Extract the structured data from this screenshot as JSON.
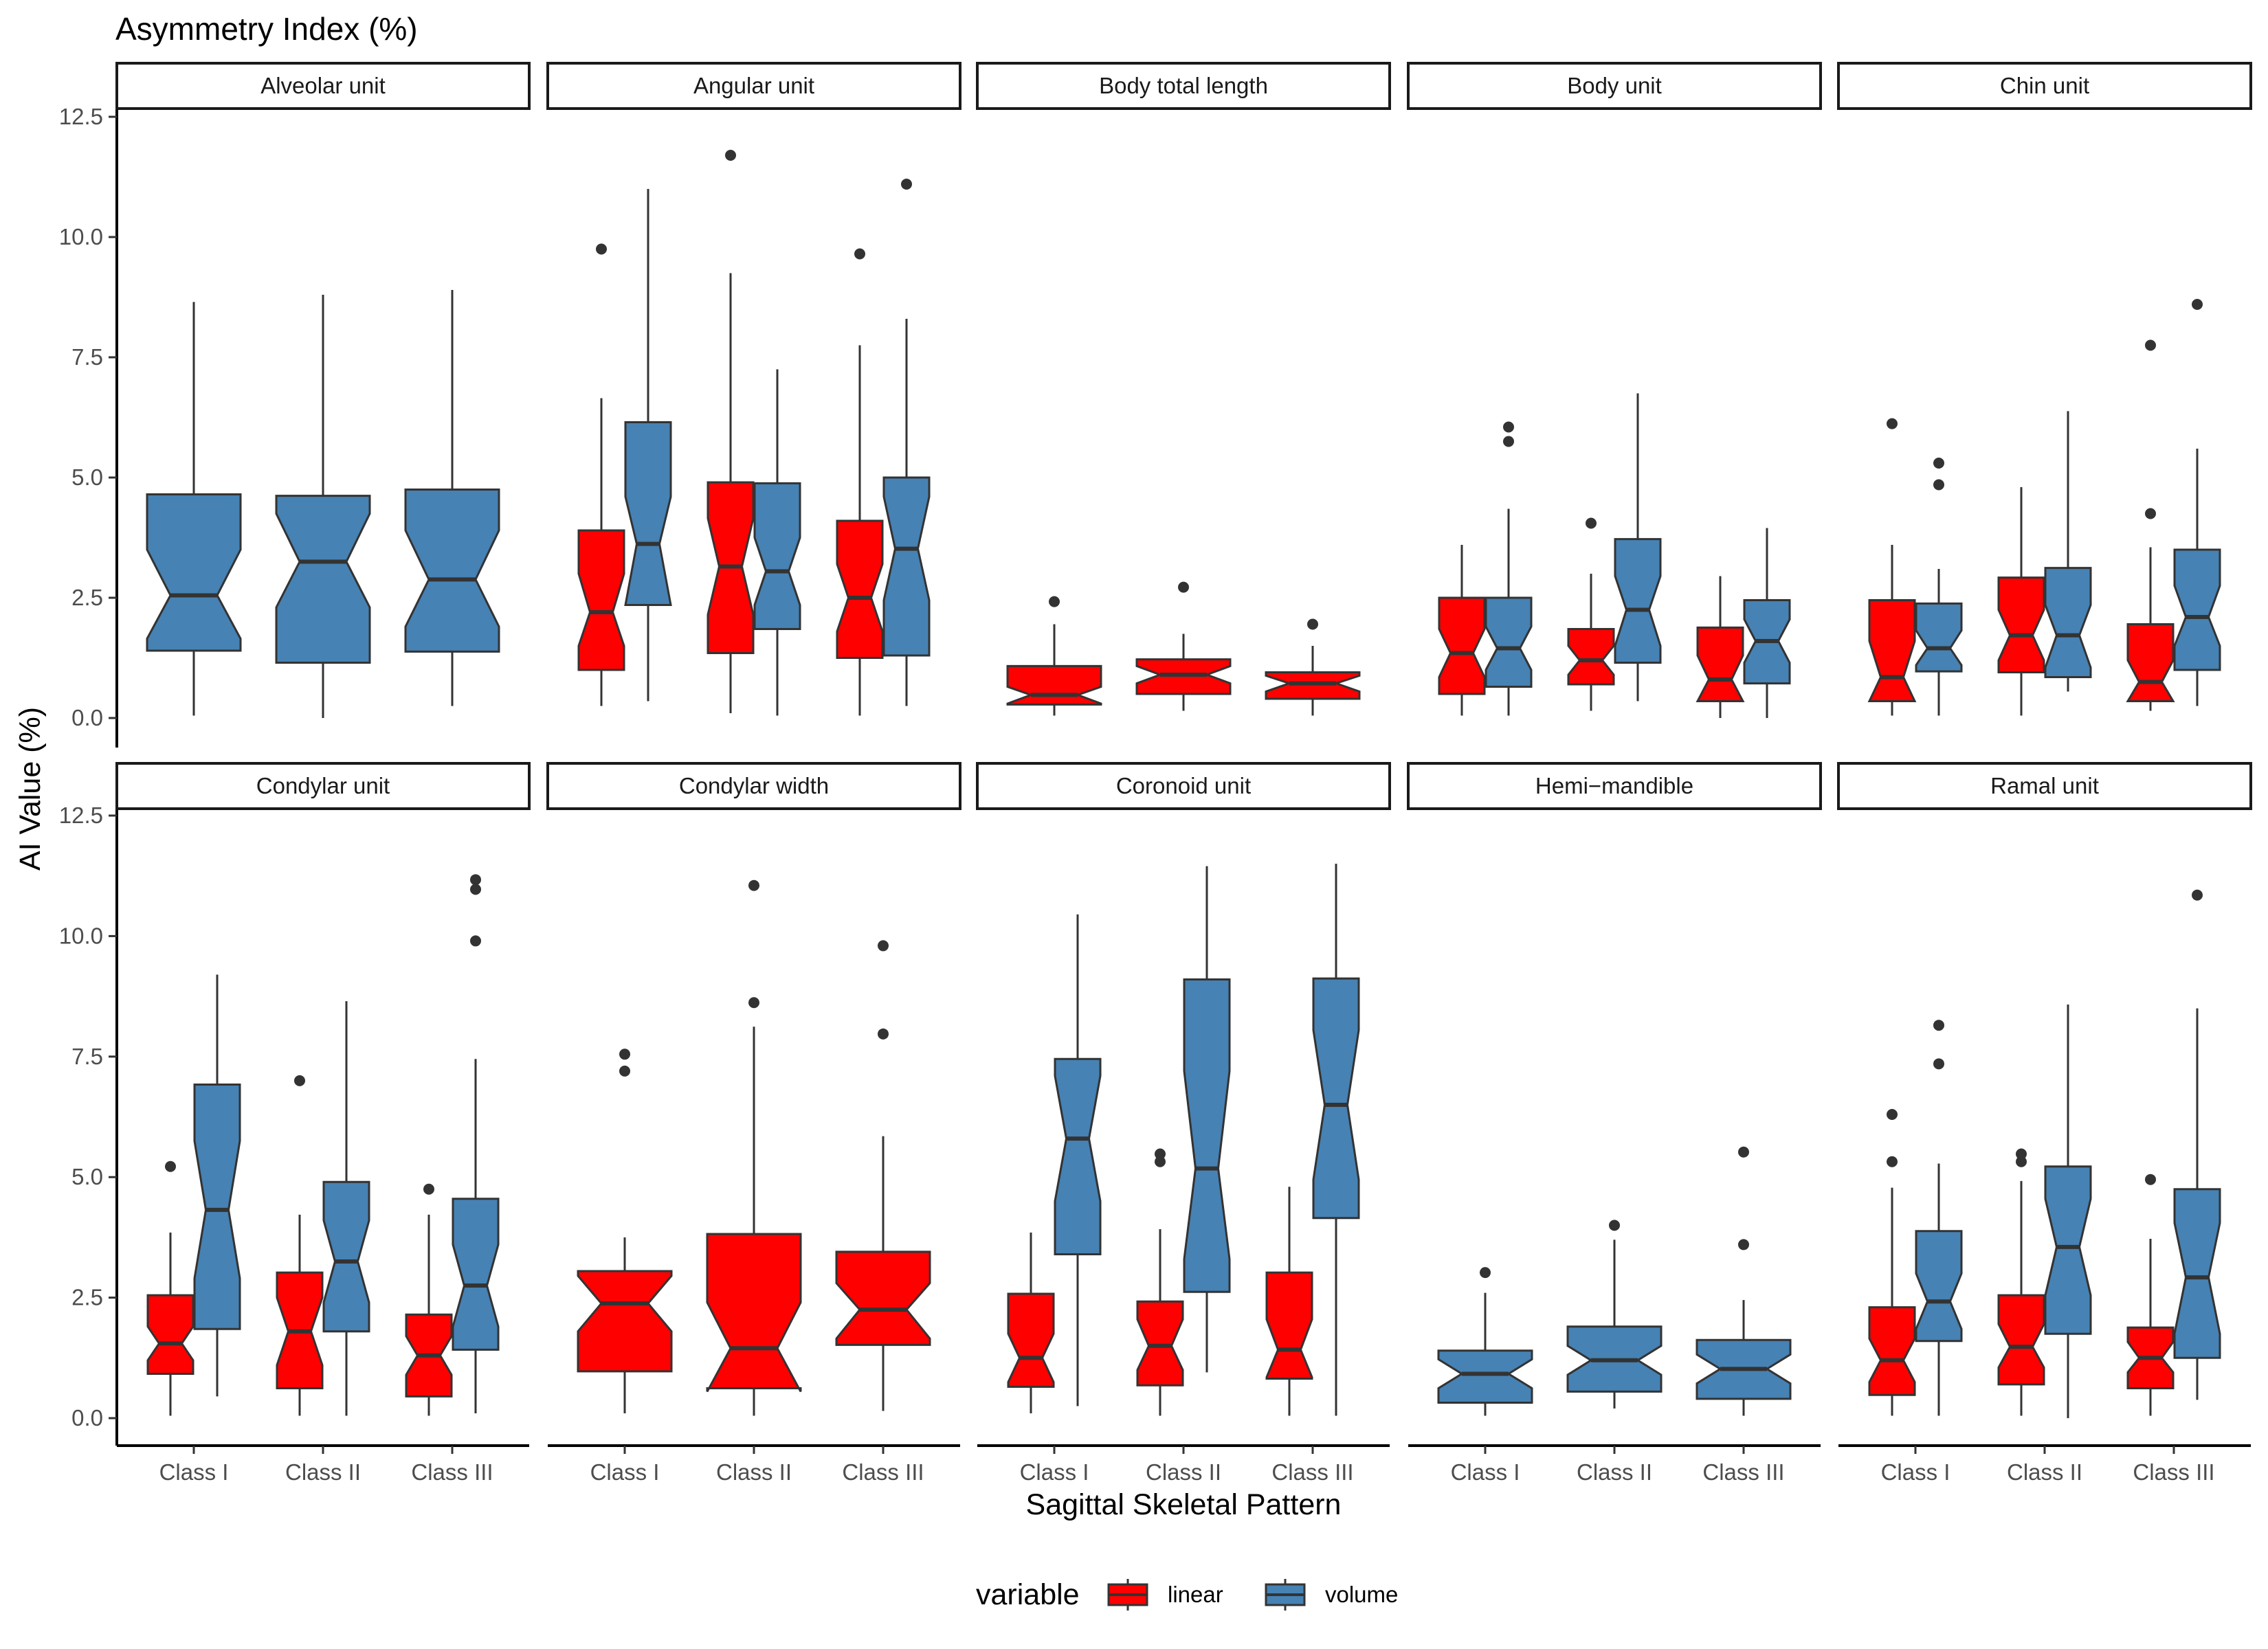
{
  "chart_data": {
    "type": "boxplot",
    "title": "Asymmetry Index (%)",
    "xlabel": "Sagittal Skeletal Pattern",
    "ylabel": "AI Value (%)",
    "ylim": [
      -0.5,
      12.5
    ],
    "yticks": [
      "0.0",
      "2.5",
      "5.0",
      "7.5",
      "10.0",
      "12.5"
    ],
    "categories": [
      "Class I",
      "Class II",
      "Class III"
    ],
    "legend": {
      "title": "variable",
      "position": "bottom",
      "entries": [
        {
          "name": "linear",
          "color": "#ff0000"
        },
        {
          "name": "volume",
          "color": "#4682b4"
        }
      ]
    },
    "panels": [
      {
        "title": "Alveolar unit",
        "boxes": [
          {
            "class": "Class I",
            "variable": "volume",
            "min": 0.05,
            "q1": 1.4,
            "median": 2.55,
            "q3": 4.65,
            "max": 8.65,
            "notch": [
              1.65,
              3.5
            ],
            "outliers": []
          },
          {
            "class": "Class II",
            "variable": "volume",
            "min": 0.0,
            "q1": 1.15,
            "median": 3.25,
            "q3": 4.62,
            "max": 8.8,
            "notch": [
              2.3,
              4.25
            ],
            "outliers": []
          },
          {
            "class": "Class III",
            "variable": "volume",
            "min": 0.25,
            "q1": 1.38,
            "median": 2.88,
            "q3": 4.75,
            "max": 8.9,
            "notch": [
              1.9,
              3.9
            ],
            "outliers": []
          }
        ]
      },
      {
        "title": "Angular unit",
        "boxes": [
          {
            "class": "Class I",
            "variable": "linear",
            "min": 0.25,
            "q1": 1.0,
            "median": 2.2,
            "q3": 3.9,
            "max": 6.65,
            "notch": [
              1.5,
              3.0
            ],
            "outliers": [
              9.75
            ]
          },
          {
            "class": "Class I",
            "variable": "volume",
            "min": 0.35,
            "q1": 2.35,
            "median": 3.62,
            "q3": 6.15,
            "max": 11.0,
            "notch": [
              2.35,
              4.6
            ],
            "outliers": []
          },
          {
            "class": "Class II",
            "variable": "linear",
            "min": 0.1,
            "q1": 1.35,
            "median": 3.15,
            "q3": 4.9,
            "max": 9.25,
            "notch": [
              2.15,
              4.15
            ],
            "outliers": [
              11.7
            ]
          },
          {
            "class": "Class II",
            "variable": "volume",
            "min": 0.05,
            "q1": 1.85,
            "median": 3.05,
            "q3": 4.88,
            "max": 7.25,
            "notch": [
              2.35,
              3.75
            ],
            "outliers": []
          },
          {
            "class": "Class III",
            "variable": "linear",
            "min": 0.05,
            "q1": 1.25,
            "median": 2.5,
            "q3": 4.1,
            "max": 7.75,
            "notch": [
              1.8,
              3.2
            ],
            "outliers": [
              9.65
            ]
          },
          {
            "class": "Class III",
            "variable": "volume",
            "min": 0.25,
            "q1": 1.3,
            "median": 3.52,
            "q3": 5.0,
            "max": 8.3,
            "notch": [
              2.45,
              4.6
            ],
            "outliers": [
              11.1
            ]
          }
        ]
      },
      {
        "title": "Body total length",
        "boxes": [
          {
            "class": "Class I",
            "variable": "linear",
            "min": 0.05,
            "q1": 0.28,
            "median": 0.48,
            "q3": 1.08,
            "max": 1.95,
            "notch": [
              0.3,
              0.65
            ],
            "outliers": [
              2.42
            ]
          },
          {
            "class": "Class II",
            "variable": "linear",
            "min": 0.15,
            "q1": 0.5,
            "median": 0.9,
            "q3": 1.22,
            "max": 1.75,
            "notch": [
              0.72,
              1.08
            ],
            "outliers": [
              2.72
            ]
          },
          {
            "class": "Class III",
            "variable": "linear",
            "min": 0.05,
            "q1": 0.4,
            "median": 0.72,
            "q3": 0.95,
            "max": 1.5,
            "notch": [
              0.55,
              0.88
            ],
            "outliers": [
              1.95
            ]
          }
        ]
      },
      {
        "title": "Body unit",
        "boxes": [
          {
            "class": "Class I",
            "variable": "linear",
            "min": 0.05,
            "q1": 0.5,
            "median": 1.35,
            "q3": 2.5,
            "max": 3.6,
            "notch": [
              0.85,
              1.85
            ],
            "outliers": []
          },
          {
            "class": "Class I",
            "variable": "volume",
            "min": 0.05,
            "q1": 0.65,
            "median": 1.45,
            "q3": 2.5,
            "max": 4.35,
            "notch": [
              1.0,
              1.9
            ],
            "outliers": [
              5.75,
              6.05
            ]
          },
          {
            "class": "Class II",
            "variable": "linear",
            "min": 0.15,
            "q1": 0.7,
            "median": 1.2,
            "q3": 1.85,
            "max": 3.0,
            "notch": [
              0.9,
              1.5
            ],
            "outliers": [
              4.05
            ]
          },
          {
            "class": "Class II",
            "variable": "volume",
            "min": 0.35,
            "q1": 1.15,
            "median": 2.25,
            "q3": 3.72,
            "max": 6.75,
            "notch": [
              1.5,
              2.95
            ],
            "outliers": []
          },
          {
            "class": "Class III",
            "variable": "linear",
            "min": 0.0,
            "q1": 0.35,
            "median": 0.8,
            "q3": 1.88,
            "max": 2.95,
            "notch": [
              0.35,
              1.3
            ],
            "outliers": []
          },
          {
            "class": "Class III",
            "variable": "volume",
            "min": 0.0,
            "q1": 0.72,
            "median": 1.6,
            "q3": 2.45,
            "max": 3.95,
            "notch": [
              1.15,
              2.05
            ],
            "outliers": []
          }
        ]
      },
      {
        "title": "Chin unit",
        "boxes": [
          {
            "class": "Class I",
            "variable": "linear",
            "min": 0.05,
            "q1": 0.35,
            "median": 0.85,
            "q3": 2.45,
            "max": 3.6,
            "notch": [
              0.35,
              1.6
            ],
            "outliers": [
              6.12
            ]
          },
          {
            "class": "Class I",
            "variable": "volume",
            "min": 0.05,
            "q1": 0.97,
            "median": 1.45,
            "q3": 2.38,
            "max": 3.1,
            "notch": [
              1.1,
              1.82
            ],
            "outliers": [
              4.85,
              5.3
            ]
          },
          {
            "class": "Class II",
            "variable": "linear",
            "min": 0.05,
            "q1": 0.95,
            "median": 1.72,
            "q3": 2.92,
            "max": 4.8,
            "notch": [
              1.2,
              2.25
            ],
            "outliers": []
          },
          {
            "class": "Class II",
            "variable": "volume",
            "min": 0.55,
            "q1": 0.85,
            "median": 1.72,
            "q3": 3.12,
            "max": 6.38,
            "notch": [
              1.05,
              2.35
            ],
            "outliers": []
          },
          {
            "class": "Class III",
            "variable": "linear",
            "min": 0.15,
            "q1": 0.35,
            "median": 0.75,
            "q3": 1.95,
            "max": 3.55,
            "notch": [
              0.35,
              1.2
            ],
            "outliers": [
              4.25,
              7.75
            ]
          },
          {
            "class": "Class III",
            "variable": "volume",
            "min": 0.25,
            "q1": 1.0,
            "median": 2.1,
            "q3": 3.5,
            "max": 5.6,
            "notch": [
              1.5,
              2.75
            ],
            "outliers": [
              8.6
            ]
          }
        ]
      },
      {
        "title": "Condylar unit",
        "boxes": [
          {
            "class": "Class I",
            "variable": "linear",
            "min": 0.05,
            "q1": 0.92,
            "median": 1.55,
            "q3": 2.55,
            "max": 3.85,
            "notch": [
              1.2,
              1.9
            ],
            "outliers": [
              5.22
            ]
          },
          {
            "class": "Class I",
            "variable": "volume",
            "min": 0.45,
            "q1": 1.85,
            "median": 4.32,
            "q3": 6.92,
            "max": 9.2,
            "notch": [
              2.9,
              5.75
            ],
            "outliers": []
          },
          {
            "class": "Class II",
            "variable": "linear",
            "min": 0.05,
            "q1": 0.62,
            "median": 1.8,
            "q3": 3.02,
            "max": 4.22,
            "notch": [
              1.1,
              2.5
            ],
            "outliers": [
              7.0
            ]
          },
          {
            "class": "Class II",
            "variable": "volume",
            "min": 0.05,
            "q1": 1.8,
            "median": 3.25,
            "q3": 4.9,
            "max": 8.65,
            "notch": [
              2.4,
              4.1
            ],
            "outliers": []
          },
          {
            "class": "Class III",
            "variable": "linear",
            "min": 0.05,
            "q1": 0.45,
            "median": 1.3,
            "q3": 2.15,
            "max": 4.22,
            "notch": [
              0.9,
              1.7
            ],
            "outliers": [
              4.75
            ]
          },
          {
            "class": "Class III",
            "variable": "volume",
            "min": 0.1,
            "q1": 1.42,
            "median": 2.75,
            "q3": 4.55,
            "max": 7.45,
            "notch": [
              1.9,
              3.6
            ],
            "outliers": [
              9.9,
              10.97,
              11.17
            ]
          }
        ]
      },
      {
        "title": "Condylar width",
        "boxes": [
          {
            "class": "Class I",
            "variable": "linear",
            "min": 0.1,
            "q1": 0.97,
            "median": 2.38,
            "q3": 3.05,
            "max": 3.75,
            "notch": [
              1.8,
              2.95
            ],
            "outliers": [
              7.2,
              7.55
            ]
          },
          {
            "class": "Class II",
            "variable": "linear",
            "min": 0.05,
            "q1": 0.62,
            "median": 1.45,
            "q3": 3.82,
            "max": 8.12,
            "notch": [
              0.55,
              2.4
            ],
            "outliers": [
              8.62,
              11.05
            ]
          },
          {
            "class": "Class III",
            "variable": "linear",
            "min": 0.15,
            "q1": 1.52,
            "median": 2.25,
            "q3": 3.45,
            "max": 5.85,
            "notch": [
              1.65,
              2.8
            ],
            "outliers": [
              7.97,
              9.8
            ]
          }
        ]
      },
      {
        "title": "Coronoid unit",
        "boxes": [
          {
            "class": "Class I",
            "variable": "linear",
            "min": 0.1,
            "q1": 0.65,
            "median": 1.25,
            "q3": 2.58,
            "max": 3.85,
            "notch": [
              0.75,
              1.75
            ],
            "outliers": []
          },
          {
            "class": "Class I",
            "variable": "volume",
            "min": 0.25,
            "q1": 3.4,
            "median": 5.8,
            "q3": 7.45,
            "max": 10.45,
            "notch": [
              4.5,
              7.1
            ],
            "outliers": []
          },
          {
            "class": "Class II",
            "variable": "linear",
            "min": 0.05,
            "q1": 0.68,
            "median": 1.5,
            "q3": 2.42,
            "max": 3.92,
            "notch": [
              1.0,
              2.05
            ],
            "outliers": [
              5.32,
              5.48
            ]
          },
          {
            "class": "Class II",
            "variable": "volume",
            "min": 0.95,
            "q1": 2.62,
            "median": 5.18,
            "q3": 9.1,
            "max": 11.45,
            "notch": [
              3.3,
              7.2
            ],
            "outliers": []
          },
          {
            "class": "Class III",
            "variable": "linear",
            "min": 0.05,
            "q1": 0.82,
            "median": 1.42,
            "q3": 3.02,
            "max": 4.8,
            "notch": [
              0.85,
              2.05
            ],
            "outliers": []
          },
          {
            "class": "Class III",
            "variable": "volume",
            "min": 0.05,
            "q1": 4.15,
            "median": 6.5,
            "q3": 9.12,
            "max": 11.5,
            "notch": [
              4.95,
              8.05
            ],
            "outliers": []
          }
        ]
      },
      {
        "title": "Hemi−mandible",
        "boxes": [
          {
            "class": "Class I",
            "variable": "volume",
            "min": 0.05,
            "q1": 0.32,
            "median": 0.92,
            "q3": 1.4,
            "max": 2.6,
            "notch": [
              0.62,
              1.22
            ],
            "outliers": [
              3.02
            ]
          },
          {
            "class": "Class II",
            "variable": "volume",
            "min": 0.2,
            "q1": 0.55,
            "median": 1.2,
            "q3": 1.9,
            "max": 3.7,
            "notch": [
              0.9,
              1.5
            ],
            "outliers": [
              4.0
            ]
          },
          {
            "class": "Class III",
            "variable": "volume",
            "min": 0.05,
            "q1": 0.4,
            "median": 1.02,
            "q3": 1.62,
            "max": 2.45,
            "notch": [
              0.72,
              1.32
            ],
            "outliers": [
              3.6,
              5.52
            ]
          }
        ]
      },
      {
        "title": "Ramal unit",
        "boxes": [
          {
            "class": "Class I",
            "variable": "linear",
            "min": 0.05,
            "q1": 0.48,
            "median": 1.2,
            "q3": 2.3,
            "max": 4.78,
            "notch": [
              0.75,
              1.65
            ],
            "outliers": [
              5.32,
              6.3
            ]
          },
          {
            "class": "Class I",
            "variable": "volume",
            "min": 0.05,
            "q1": 1.6,
            "median": 2.42,
            "q3": 3.88,
            "max": 5.28,
            "notch": [
              1.85,
              3.0
            ],
            "outliers": [
              7.35,
              8.15
            ]
          },
          {
            "class": "Class II",
            "variable": "linear",
            "min": 0.05,
            "q1": 0.7,
            "median": 1.48,
            "q3": 2.55,
            "max": 4.92,
            "notch": [
              1.05,
              1.95
            ],
            "outliers": [
              5.32,
              5.48
            ]
          },
          {
            "class": "Class II",
            "variable": "volume",
            "min": 0.0,
            "q1": 1.75,
            "median": 3.55,
            "q3": 5.22,
            "max": 8.58,
            "notch": [
              2.55,
              4.55
            ],
            "outliers": []
          },
          {
            "class": "Class III",
            "variable": "linear",
            "min": 0.05,
            "q1": 0.62,
            "median": 1.25,
            "q3": 1.88,
            "max": 3.72,
            "notch": [
              0.95,
              1.58
            ],
            "outliers": [
              4.95
            ]
          },
          {
            "class": "Class III",
            "variable": "volume",
            "min": 0.38,
            "q1": 1.25,
            "median": 2.92,
            "q3": 4.75,
            "max": 8.5,
            "notch": [
              1.75,
              4.05
            ],
            "outliers": [
              10.85
            ]
          }
        ]
      }
    ]
  }
}
